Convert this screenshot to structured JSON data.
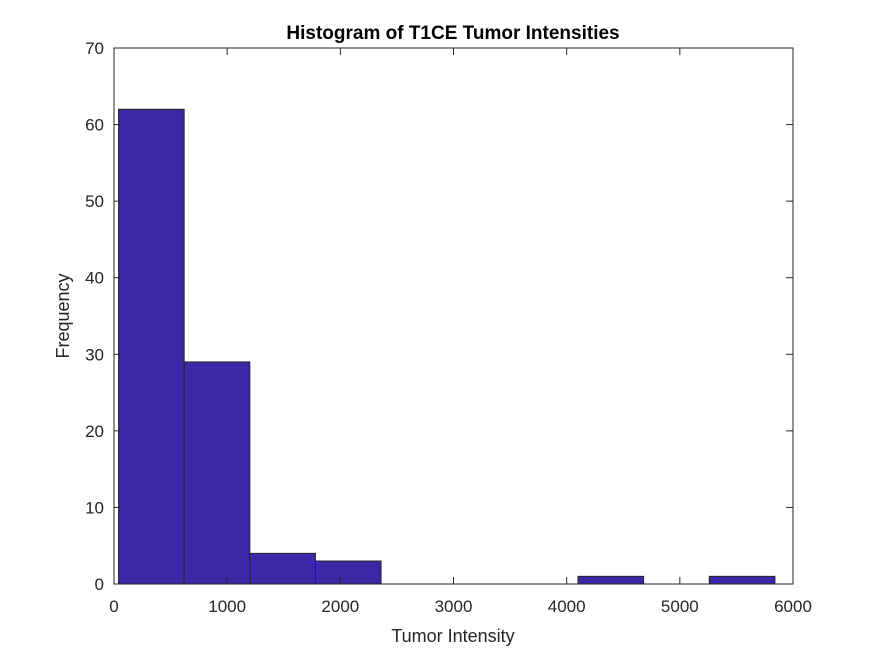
{
  "chart_data": {
    "type": "bar",
    "title": "Histogram of T1CE Tumor Intensities",
    "xlabel": "Tumor Intensity",
    "ylabel": "Frequency",
    "xlim": [
      0,
      6000
    ],
    "ylim": [
      0,
      70
    ],
    "xticks": [
      0,
      1000,
      2000,
      3000,
      4000,
      5000,
      6000
    ],
    "xtick_labels": [
      "0",
      "1000",
      "2000",
      "3000",
      "4000",
      "5000",
      "6000"
    ],
    "yticks": [
      0,
      10,
      20,
      30,
      40,
      50,
      60,
      70
    ],
    "ytick_labels": [
      "0",
      "10",
      "20",
      "30",
      "40",
      "50",
      "60",
      "70"
    ],
    "bin_edges": [
      40,
      620,
      1200,
      1780,
      2360,
      2940,
      3520,
      4100,
      4680,
      5260,
      5840
    ],
    "values": [
      62,
      29,
      4,
      3,
      0,
      0,
      0,
      1,
      0,
      1
    ],
    "bar_color": "#3C27A6",
    "edge_color": "#262626",
    "grid": false
  }
}
